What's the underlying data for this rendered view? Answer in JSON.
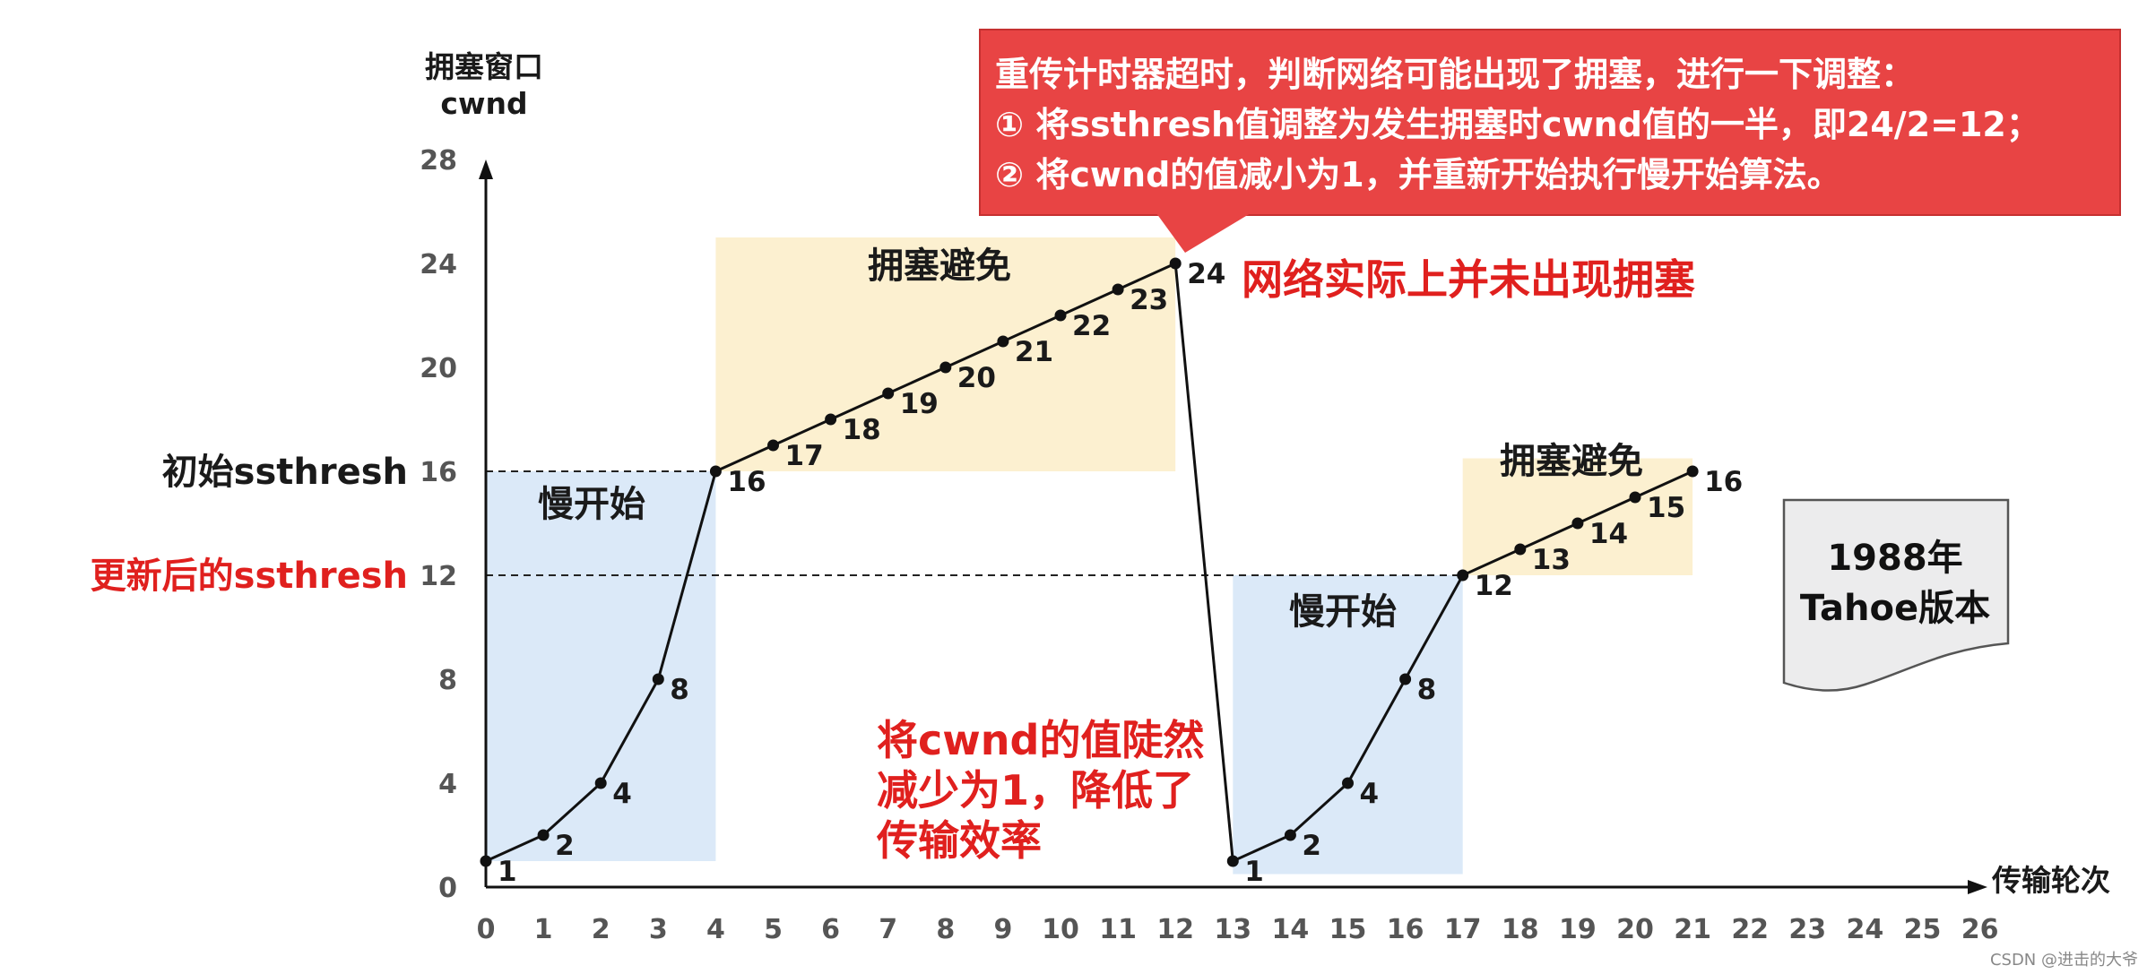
{
  "chart_data": {
    "type": "line",
    "ylabel": [
      "拥塞窗口",
      "cwnd"
    ],
    "xlabel": "传输轮次",
    "x_ticks": [
      0,
      1,
      2,
      3,
      4,
      5,
      6,
      7,
      8,
      9,
      10,
      11,
      12,
      13,
      14,
      15,
      16,
      17,
      18,
      19,
      20,
      21,
      22,
      23,
      24,
      25,
      26
    ],
    "y_ticks": [
      0,
      4,
      8,
      12,
      16,
      20,
      24,
      28
    ],
    "xlim": [
      0,
      26
    ],
    "ylim": [
      0,
      28
    ],
    "series": [
      {
        "x": [
          0,
          1,
          2,
          3,
          4,
          5,
          6,
          7,
          8,
          9,
          10,
          11,
          12,
          13,
          14,
          15,
          16,
          17,
          18,
          19,
          20,
          21
        ],
        "y": [
          1,
          2,
          4,
          8,
          16,
          17,
          18,
          19,
          20,
          21,
          22,
          23,
          24,
          1,
          2,
          4,
          8,
          12,
          13,
          14,
          15,
          16
        ]
      }
    ],
    "regions": [
      {
        "label": "慢开始",
        "x": [
          0,
          4
        ],
        "y": [
          1,
          16
        ],
        "color": "#dbe9f8"
      },
      {
        "label": "拥塞避免",
        "x": [
          4,
          12
        ],
        "y": [
          16,
          25
        ],
        "color": "#fcf0d0"
      },
      {
        "label": "慢开始",
        "x": [
          13,
          17
        ],
        "y": [
          0.5,
          12
        ],
        "color": "#dbe9f8"
      },
      {
        "label": "拥塞避免",
        "x": [
          17,
          21
        ],
        "y": [
          12,
          16.5
        ],
        "color": "#fcf0d0"
      }
    ],
    "thresholds": [
      {
        "y": 16,
        "label": "初始ssthresh",
        "color": "#1a1a1a"
      },
      {
        "y": 12,
        "label": "更新后的ssthresh",
        "color": "#e0201e"
      }
    ],
    "annotations": {
      "callout": {
        "lines": [
          "重传计时器超时，判断网络可能出现了拥塞，进行一下调整：",
          "①  将ssthresh值调整为发生拥塞时cwnd值的一半，即24/2=12；",
          "②  将cwnd的值减小为1，并重新开始执行慢开始算法。"
        ],
        "color": "#e84444"
      },
      "red_note_top": "网络实际上并未出现拥塞",
      "red_note_bottom": [
        "将cwnd的值陡然",
        "减少为1，降低了",
        "传输效率"
      ],
      "version_note": [
        "1988年",
        "Tahoe版本"
      ]
    },
    "grid": false,
    "legend": "none"
  },
  "credit": "CSDN @进击的大爷"
}
